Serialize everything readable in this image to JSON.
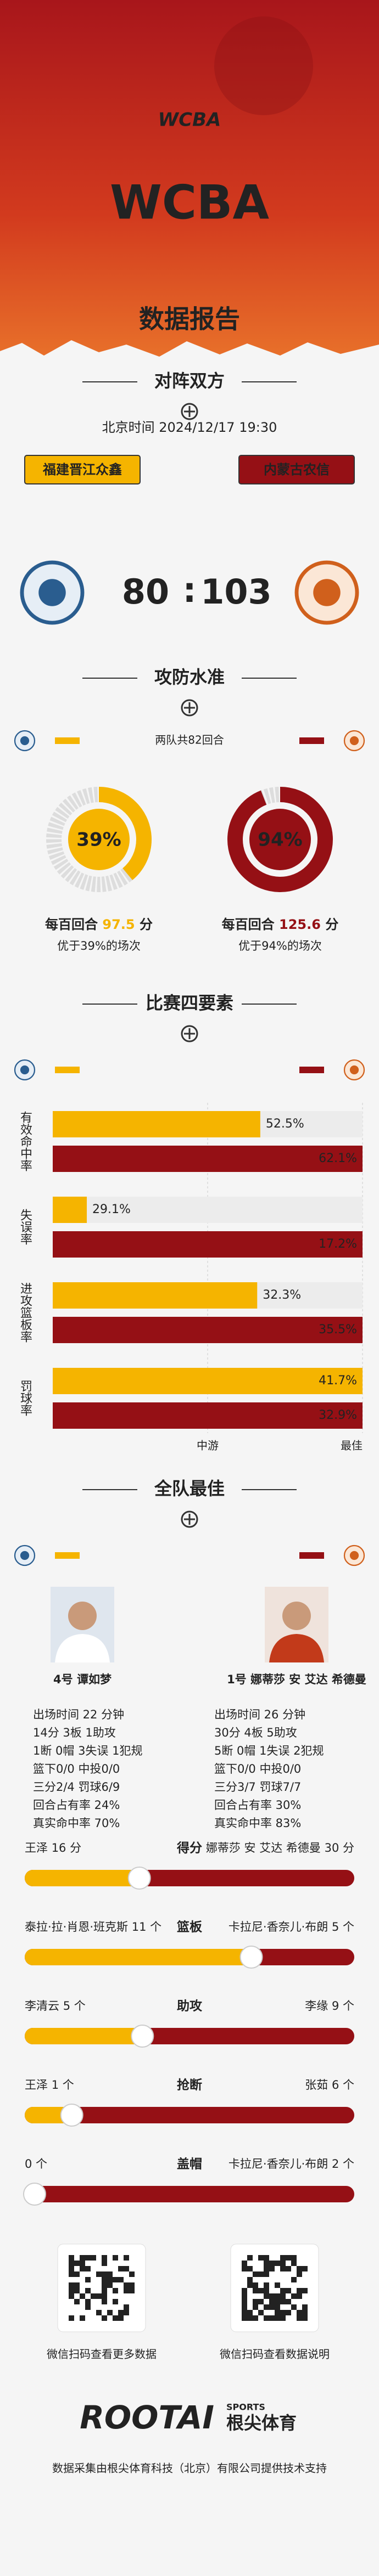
{
  "header": {
    "logo": "WCBA",
    "title": "WCBA",
    "subtitle": "数据报告"
  },
  "matchup": {
    "heading": "对阵双方",
    "time": "北京时间 2024/12/17 19:30",
    "separator": ":",
    "home": {
      "name": "福建晋江众鑫",
      "score": 80
    },
    "away": {
      "name": "内蒙古农信",
      "score": 103
    }
  },
  "efficiency": {
    "heading": "攻防水准",
    "possessions": "两队共82回合",
    "home": {
      "percentile": 39,
      "percentile_label": "39%",
      "rating_prefix": "每百回合",
      "rating": 97.5,
      "rating_unit": "分",
      "note": "优于39%的场次"
    },
    "away": {
      "percentile": 94,
      "percentile_label": "94%",
      "rating_prefix": "每百回合",
      "rating": 125.6,
      "rating_unit": "分",
      "note": "优于94%的场次"
    }
  },
  "four_factors": {
    "heading": "比赛四要素",
    "scale": {
      "lim": [
        0,
        100
      ],
      "ticks": [
        {
          "value": 50,
          "label": "中游"
        },
        {
          "value": 100,
          "label": "最佳"
        }
      ]
    },
    "factors": [
      {
        "name": "有效命中率",
        "home": {
          "label": "52.5%",
          "percentile": 67
        },
        "away": {
          "label": "62.1%",
          "percentile": 100
        }
      },
      {
        "name": "失误率",
        "home": {
          "label": "29.1%",
          "percentile": 11
        },
        "away": {
          "label": "17.2%",
          "percentile": 100
        }
      },
      {
        "name": "进攻篮板率",
        "home": {
          "label": "32.3%",
          "percentile": 66
        },
        "away": {
          "label": "35.5%",
          "percentile": 100
        }
      },
      {
        "name": "罚球率",
        "home": {
          "label": "41.7%",
          "percentile": 100
        },
        "away": {
          "label": "32.9%",
          "percentile": 100
        }
      }
    ]
  },
  "best_players": {
    "heading": "全队最佳",
    "home": {
      "name": "4号 谭如梦",
      "stats": [
        "出场时间 22 分钟",
        "14分 3板 1助攻",
        "1断 0帽 3失误 1犯规",
        "篮下0/0 中投0/0",
        "三分2/4 罚球6/9",
        "回合占有率 24%",
        "真实命中率 70%"
      ]
    },
    "away": {
      "name": "1号 娜蒂莎 安 艾达 希德曼",
      "stats": [
        "出场时间 26 分钟",
        "30分 4板 5助攻",
        "5断 0帽 1失误 2犯规",
        "篮下0/0 中投0/0",
        "三分3/7 罚球7/7",
        "回合占有率 30%",
        "真实命中率 83%"
      ]
    }
  },
  "leaders": [
    {
      "stat": "得分",
      "home": {
        "player": "王泽",
        "value": 16,
        "label": "16 分"
      },
      "away": {
        "player": "娜蒂莎 安 艾达 希德曼",
        "value": 30,
        "label": "30 分"
      }
    },
    {
      "stat": "篮板",
      "home": {
        "player": "泰拉·拉·肖恩·班克斯",
        "value": 11,
        "label": "11 个"
      },
      "away": {
        "player": "卡拉尼·香奈儿·布朗",
        "value": 5,
        "label": "5 个"
      }
    },
    {
      "stat": "助攻",
      "home": {
        "player": "李清云",
        "value": 5,
        "label": "5 个"
      },
      "away": {
        "player": "李缘",
        "value": 9,
        "label": "9 个"
      }
    },
    {
      "stat": "抢断",
      "home": {
        "player": "王泽",
        "value": 1,
        "label": "1 个"
      },
      "away": {
        "player": "张茹",
        "value": 6,
        "label": "6 个"
      }
    },
    {
      "stat": "盖帽",
      "home": {
        "value": 0,
        "label": "0 个"
      },
      "away": {
        "player": "卡拉尼·香奈儿·布朗",
        "value": 2,
        "label": "2 个"
      }
    }
  ],
  "footer": {
    "qr_left": "微信扫码查看更多数据",
    "qr_right": "微信扫码查看数据说明",
    "brand": "ROOTAI",
    "brand_tag": "SPORTS",
    "brand_cn": "根尖体育",
    "credit": "数据采集由根尖体育科技（北京）有限公司提供技术支持"
  }
}
